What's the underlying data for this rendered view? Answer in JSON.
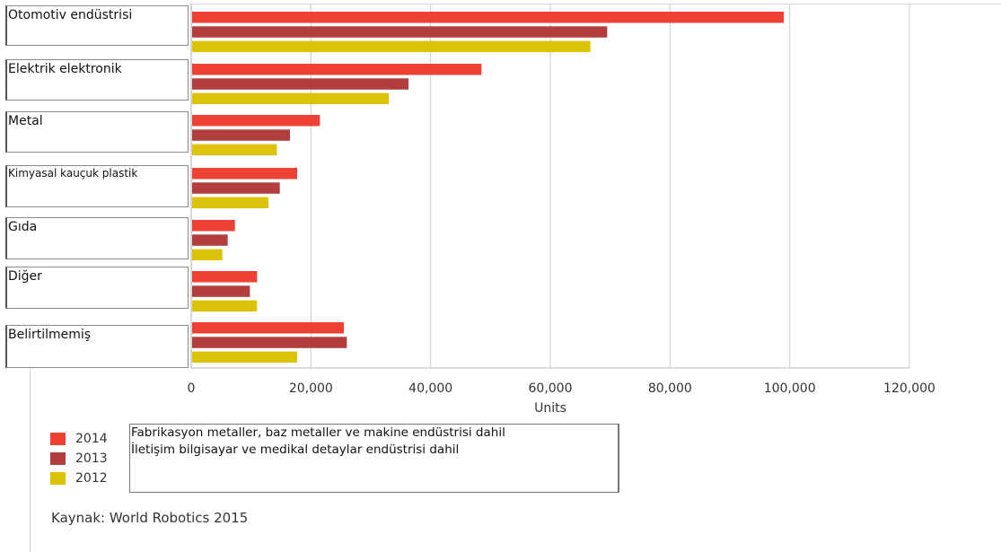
{
  "chart_data": {
    "type": "bar",
    "orientation": "horizontal",
    "categories": [
      "Otomotiv endüstrisi",
      "Elektrik elektronik",
      "Metal",
      "Kimyasal kauçuk plastik",
      "Gıda",
      "Diğer",
      "Belirtilmemiş"
    ],
    "series": [
      {
        "name": "2014",
        "color": "#ee4135",
        "values": [
          99000,
          48500,
          21500,
          17700,
          7300,
          11000,
          25500
        ]
      },
      {
        "name": "2013",
        "color": "#b23e3e",
        "values": [
          69500,
          36300,
          16500,
          14800,
          6100,
          9800,
          26000
        ]
      },
      {
        "name": "2012",
        "color": "#dcc30a",
        "values": [
          66700,
          33000,
          14300,
          12900,
          5200,
          11000,
          17700
        ]
      }
    ],
    "xlabel": "Units",
    "xlim": [
      0,
      120000
    ],
    "xticks": [
      "0",
      "20,000",
      "40,000",
      "60,000",
      "80,000",
      "100,000",
      "120,000"
    ],
    "grid": true,
    "legend_position": "bottom-left"
  },
  "notes": [
    "Fabrikasyon metaller, baz metaller ve makine endüstrisi dahil",
    "İletişim bilgisayar ve medikal detaylar endüstrisi dahil"
  ],
  "source": "Kaynak: World Robotics 2015"
}
